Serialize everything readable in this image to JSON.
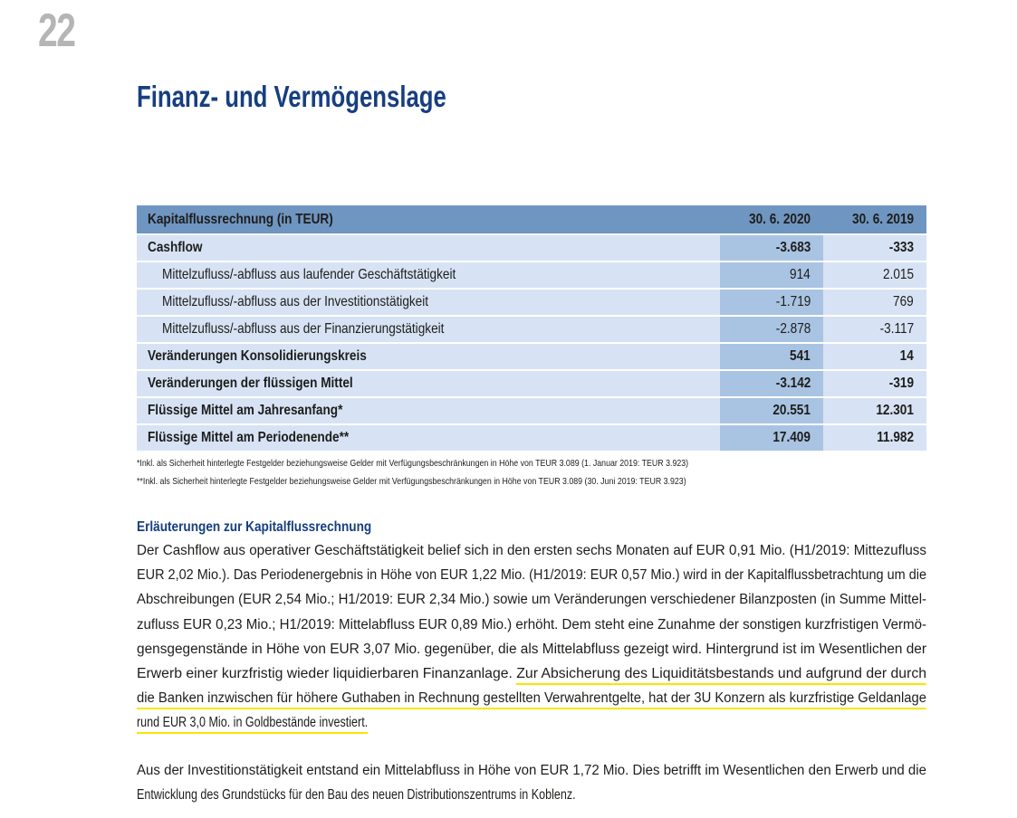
{
  "page_number": "22",
  "title": "Finanz- und Vermögenslage",
  "table": {
    "headers": [
      "Kapitalflussrechnung  (in TEUR)",
      "30. 6. 2020",
      "30. 6. 2019"
    ],
    "rows": [
      {
        "label": "Cashflow",
        "v2020": "-3.683",
        "v2019": "-333",
        "bold": true
      },
      {
        "label": "Mittelzufluss/-abfluss aus laufender Geschäftstätigkeit",
        "v2020": "914",
        "v2019": "2.015",
        "bold": false
      },
      {
        "label": "Mittelzufluss/-abfluss aus der Investitionstätigkeit",
        "v2020": "-1.719",
        "v2019": "769",
        "bold": false
      },
      {
        "label": "Mittelzufluss/-abfluss aus der Finanzierungstätigkeit",
        "v2020": "-2.878",
        "v2019": "-3.117",
        "bold": false
      },
      {
        "label": "Veränderungen Konsolidierungskreis",
        "v2020": "541",
        "v2019": "14",
        "bold": true
      },
      {
        "label": "Veränderungen der flüssigen Mittel",
        "v2020": "-3.142",
        "v2019": "-319",
        "bold": true
      },
      {
        "label": "Flüssige Mittel am Jahresanfang*",
        "v2020": "20.551",
        "v2019": "12.301",
        "bold": true
      },
      {
        "label": "Flüssige Mittel am Periodenende**",
        "v2020": "17.409",
        "v2019": "11.982",
        "bold": true
      }
    ]
  },
  "footnotes": [
    "*Inkl. als Sicherheit hinterlegte Festgelder beziehungsweise Gelder mit Verfügungsbeschränkungen in Höhe von TEUR 3.089 (1. Januar 2019: TEUR 3.923)",
    "**Inkl. als Sicherheit hinterlegte Festgelder beziehungsweise Gelder mit Verfügungsbeschränkungen in Höhe von TEUR 3.089 (30. Juni 2019: TEUR 3.923)"
  ],
  "section_heading": "Erläuterungen zur Kapitalflussrechnung",
  "paragraph1_lines": [
    [
      {
        "text": "Der Cashflow aus operativer Geschäftstätigkeit belief sich in den ersten sechs Monaten auf EUR 0,91 Mio. (H1/2019: Mittezufluss",
        "highlight": false
      }
    ],
    [
      {
        "text": "EUR 2,02 Mio.). Das Periodenergebnis in Höhe von EUR 1,22 Mio. (H1/2019: EUR 0,57 Mio.) wird in der Kapitalflussbetrachtung um die",
        "highlight": false
      }
    ],
    [
      {
        "text": "Abschreibungen (EUR 2,54 Mio.; H1/2019: EUR 2,34 Mio.) sowie um Veränderungen verschiedener Bilanzposten (in Summe Mittel-",
        "highlight": false
      }
    ],
    [
      {
        "text": "zufluss EUR 0,23 Mio.; H1/2019: Mittelabfluss EUR 0,89 Mio.) erhöht. Dem steht eine Zunahme der sonstigen kurzfristigen Vermö-",
        "highlight": false
      }
    ],
    [
      {
        "text": "gensgegenstände in Höhe von EUR 3,07 Mio. gegenüber, die als Mittelabfluss gezeigt wird. Hintergrund ist im Wesentlichen der",
        "highlight": false
      }
    ],
    [
      {
        "text": "Erwerb einer kurzfristig wieder liquidierbaren Finanzanlage. ",
        "highlight": false
      },
      {
        "text": "Zur Absicherung des Liquiditätsbestands und aufgrund der durch",
        "highlight": true
      }
    ],
    [
      {
        "text": "die Banken inzwischen für höhere Guthaben in Rechnung gestellten Verwahrentgelte, hat der 3U Konzern als kurzfristige Geldanlage",
        "highlight": true
      }
    ],
    [
      {
        "text": "rund EUR 3,0 Mio. in Goldbestände investiert",
        "highlight": true
      },
      {
        "text": ".",
        "highlight": true
      }
    ]
  ],
  "paragraph2_lines": [
    [
      {
        "text": "Aus der Investitionstätigkeit entstand ein Mittelabfluss in Höhe von EUR 1,72 Mio. Dies betrifft im Wesentlichen den Erwerb und die",
        "highlight": false
      }
    ],
    [
      {
        "text": "Entwicklung des Grundstücks für den Bau des neuen Distributionszentrums in Koblenz.",
        "highlight": false
      }
    ]
  ],
  "colors": {
    "title": "#173f7f",
    "table_header": "#6f95c1",
    "row": "#d7e3f4",
    "row_highlight_col": "#a9c3e2",
    "highlight_underline": "#f6e600",
    "page_number": "#b5b5b5"
  }
}
